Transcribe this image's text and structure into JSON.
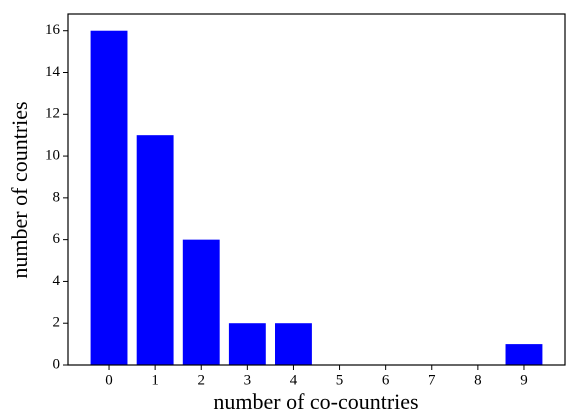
{
  "chart_data": {
    "type": "bar",
    "x_label": "number of co-countries",
    "y_label": "number of countries",
    "x": [
      0,
      1,
      2,
      3,
      4,
      5,
      6,
      7,
      8,
      9
    ],
    "values": [
      16,
      11,
      6,
      2,
      2,
      0,
      0,
      0,
      0,
      1
    ],
    "color": "#0000ff",
    "bar_width": 0.8,
    "xlim": [
      -0.89,
      9.89
    ],
    "xticks": [
      0,
      1,
      2,
      3,
      4,
      5,
      6,
      7,
      8,
      9
    ],
    "ylim": [
      0,
      16.8
    ],
    "yticks": [
      0,
      2,
      4,
      6,
      8,
      10,
      12,
      14,
      16
    ],
    "grid": false
  }
}
